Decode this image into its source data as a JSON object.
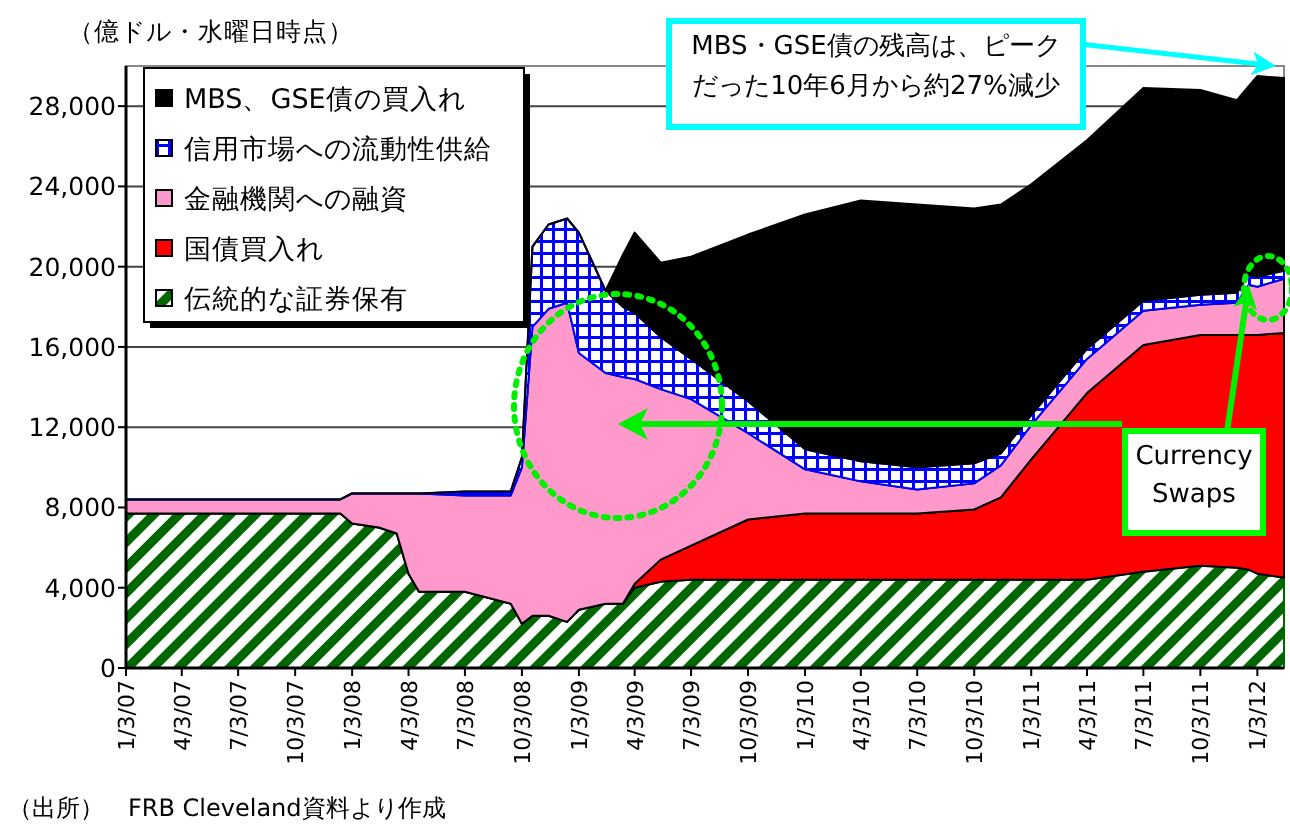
{
  "chart_data": {
    "type": "area",
    "stacked": true,
    "ylabel": "（億ドル・水曜日時点）",
    "annotations": [
      "MBS・GSE債の残高は、ピークだった10年6月から約27%減少",
      {
        "text": "Currency Swaps",
        "x": "2011-12-20",
        "y": 19100
      },
      "（出所）　FRB Cleveland資料より作成"
    ],
    "x": [
      "2007-01-03",
      "2007-07-03",
      "2007-12-15",
      "2008-01-03",
      "2008-02-15",
      "2008-03-15",
      "2008-04-03",
      "2008-04-20",
      "2008-07-03",
      "2008-09-15",
      "2008-10-03",
      "2008-10-20",
      "2008-11-15",
      "2008-12-15",
      "2009-01-03",
      "2009-02-15",
      "2009-03-15",
      "2009-04-03",
      "2009-05-15",
      "2009-07-03",
      "2009-10-03",
      "2010-01-03",
      "2010-04-03",
      "2010-07-03",
      "2010-10-03",
      "2010-11-15",
      "2011-01-03",
      "2011-04-03",
      "2011-07-03",
      "2011-10-03",
      "2011-12-01",
      "2011-12-20",
      "2012-01-03",
      "2012-02-15"
    ],
    "series": [
      {
        "name": "伝統的な証券保有",
        "color": "#006600",
        "values": [
          7700,
          7700,
          7700,
          7200,
          7000,
          6700,
          4700,
          3800,
          3800,
          3200,
          2200,
          2600,
          2600,
          2300,
          2900,
          3200,
          3200,
          4000,
          4300,
          4400,
          4400,
          4400,
          4400,
          4400,
          4400,
          4400,
          4400,
          4400,
          4800,
          5100,
          5000,
          4900,
          4700,
          4500
        ]
      },
      {
        "name": "国債買入れ",
        "color": "#ff0000",
        "values": [
          0,
          0,
          0,
          0,
          0,
          0,
          0,
          0,
          0,
          0,
          0,
          0,
          0,
          0,
          0,
          0,
          0,
          200,
          1100,
          1700,
          3000,
          3300,
          3300,
          3300,
          3500,
          4100,
          6000,
          9300,
          11300,
          11500,
          11600,
          11700,
          11900,
          12200
        ]
      },
      {
        "name": "金融機関への融資",
        "color": "#ff99cc",
        "values": [
          700,
          700,
          700,
          1500,
          1700,
          2000,
          4000,
          4900,
          4800,
          5400,
          7800,
          14400,
          15300,
          15900,
          12800,
          11500,
          11300,
          10200,
          8500,
          7300,
          4300,
          2200,
          1600,
          1200,
          1300,
          1600,
          1700,
          1700,
          1700,
          1500,
          1600,
          2500,
          2400,
          2700
        ]
      },
      {
        "name": "信用市場への流動性供給",
        "color": "#0000ff",
        "values": [
          0,
          0,
          0,
          0,
          0,
          0,
          0,
          0,
          200,
          200,
          500,
          4000,
          4200,
          4200,
          6000,
          4100,
          3500,
          3300,
          2600,
          2000,
          1600,
          1000,
          1000,
          1100,
          1000,
          600,
          500,
          500,
          500,
          500,
          500,
          500,
          500,
          400
        ]
      },
      {
        "name": "MBS、GSE債の買入れ",
        "color": "#000000",
        "values": [
          0,
          0,
          0,
          0,
          0,
          0,
          0,
          0,
          0,
          0,
          0,
          0,
          0,
          0,
          0,
          0,
          2600,
          4000,
          3700,
          5100,
          8300,
          11700,
          13000,
          13100,
          12700,
          12400,
          11500,
          10400,
          10600,
          10200,
          9600,
          9400,
          10000,
          9600
        ]
      }
    ],
    "xlim": [
      "2007-01-03",
      "2012-02-15"
    ],
    "xticks": [
      {
        "value": "2007-01-03",
        "label": "1/3/07"
      },
      {
        "value": "2007-04-03",
        "label": "4/3/07"
      },
      {
        "value": "2007-07-03",
        "label": "7/3/07"
      },
      {
        "value": "2007-10-03",
        "label": "10/3/07"
      },
      {
        "value": "2008-01-03",
        "label": "1/3/08"
      },
      {
        "value": "2008-04-03",
        "label": "4/3/08"
      },
      {
        "value": "2008-07-03",
        "label": "7/3/08"
      },
      {
        "value": "2008-10-03",
        "label": "10/3/08"
      },
      {
        "value": "2009-01-03",
        "label": "1/3/09"
      },
      {
        "value": "2009-04-03",
        "label": "4/3/09"
      },
      {
        "value": "2009-07-03",
        "label": "7/3/09"
      },
      {
        "value": "2009-10-03",
        "label": "10/3/09"
      },
      {
        "value": "2010-01-03",
        "label": "1/3/10"
      },
      {
        "value": "2010-04-03",
        "label": "4/3/10"
      },
      {
        "value": "2010-07-03",
        "label": "7/3/10"
      },
      {
        "value": "2010-10-03",
        "label": "10/3/10"
      },
      {
        "value": "2011-01-03",
        "label": "1/3/11"
      },
      {
        "value": "2011-04-03",
        "label": "4/3/11"
      },
      {
        "value": "2011-07-03",
        "label": "7/3/11"
      },
      {
        "value": "2011-10-03",
        "label": "10/3/11"
      },
      {
        "value": "2012-01-03",
        "label": "1/3/12"
      }
    ],
    "ylim": [
      0,
      30000
    ],
    "yticks": [
      0,
      {
        "value": 4000,
        "label": "4,000"
      },
      {
        "value": 8000,
        "label": "8,000"
      },
      {
        "value": 12000,
        "label": "12,000"
      },
      {
        "value": 16000,
        "label": "16,000"
      },
      {
        "value": 20000,
        "label": "20,000"
      },
      {
        "value": 24000,
        "label": "24,000"
      },
      {
        "value": 28000,
        "label": "28,000"
      }
    ],
    "grid": "y",
    "legend": "top left"
  }
}
